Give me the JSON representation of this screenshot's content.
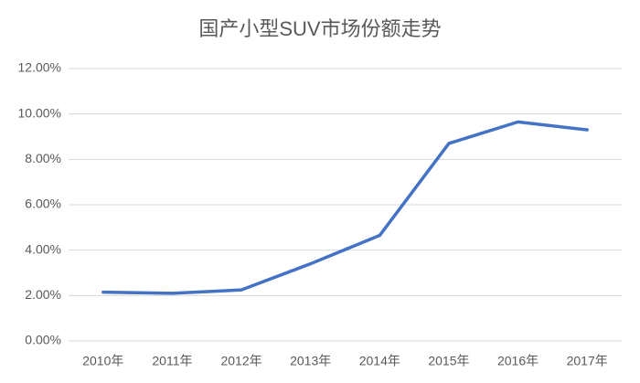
{
  "chart_data": {
    "type": "line",
    "title": "国产小型SUV市场份额走势",
    "categories": [
      "2010年",
      "2011年",
      "2012年",
      "2013年",
      "2014年",
      "2015年",
      "2016年",
      "2017年"
    ],
    "series": [
      {
        "name": "国产小型SUV市场份额",
        "color": "#4472c4",
        "values": [
          2.15,
          2.1,
          2.25,
          3.4,
          4.65,
          8.7,
          9.65,
          9.3
        ]
      }
    ],
    "ylim": [
      0,
      12
    ],
    "yticks": [
      {
        "value": 0,
        "label": "0.00%"
      },
      {
        "value": 2,
        "label": "2.00%"
      },
      {
        "value": 4,
        "label": "4.00%"
      },
      {
        "value": 6,
        "label": "6.00%"
      },
      {
        "value": 8,
        "label": "8.00%"
      },
      {
        "value": 10,
        "label": "10.00%"
      },
      {
        "value": 12,
        "label": "12.00%"
      }
    ],
    "grid": true
  }
}
